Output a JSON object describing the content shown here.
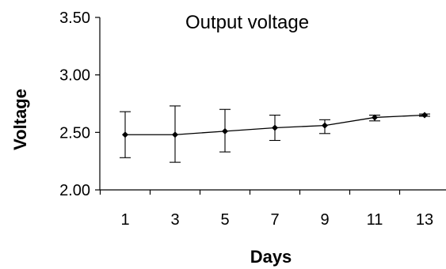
{
  "chart_data": {
    "type": "line",
    "title": "Output voltage",
    "xlabel": "Days",
    "ylabel": "Voltage",
    "x": [
      1,
      3,
      5,
      7,
      9,
      11,
      13
    ],
    "x_tick_labels": [
      "1",
      "3",
      "5",
      "7",
      "9",
      "11",
      "13"
    ],
    "y_tick_labels": [
      "3.50",
      "3.00",
      "2.50",
      "2.00"
    ],
    "ylim": [
      2.0,
      3.5
    ],
    "y_ticks": [
      3.5,
      3.0,
      2.5,
      2.0
    ],
    "grid": false,
    "series": [
      {
        "values": [
          2.48,
          2.48,
          2.51,
          2.54,
          2.56,
          2.63,
          2.65
        ],
        "error_upper": [
          2.68,
          2.73,
          2.7,
          2.65,
          2.61,
          2.65,
          2.66
        ],
        "error_lower": [
          2.28,
          2.24,
          2.33,
          2.43,
          2.49,
          2.6,
          2.64
        ],
        "marker": "diamond",
        "color": "#000000"
      }
    ]
  }
}
